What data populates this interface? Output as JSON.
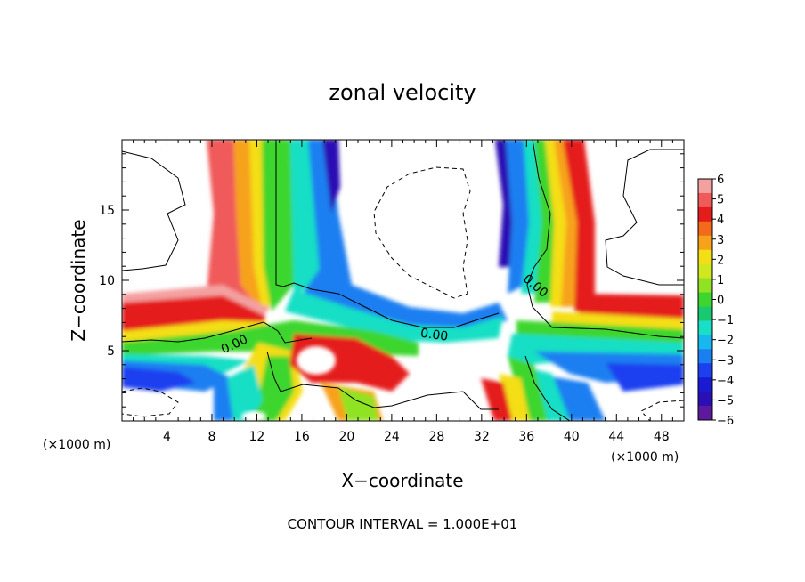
{
  "chart_data": {
    "type": "heatmap",
    "title": "zonal velocity",
    "xlabel": "X−coordinate",
    "ylabel": "Z−coordinate",
    "x_unit_left": "(×1000 m)",
    "x_unit_right": "(×1000 m)",
    "footer": "CONTOUR INTERVAL = 1.000E+01",
    "contour_label": "0.00",
    "xlim": [
      0,
      50
    ],
    "ylim": [
      0,
      20
    ],
    "x_ticks": [
      4,
      8,
      12,
      16,
      20,
      24,
      28,
      32,
      36,
      40,
      44,
      48
    ],
    "y_ticks": [
      5,
      10,
      15
    ],
    "colorbar": {
      "ticks": [
        "6",
        "5",
        "4",
        "3",
        "2",
        "1",
        "0",
        "−1",
        "−2",
        "−3",
        "−4",
        "−5",
        "−6"
      ],
      "range": [
        -6,
        6
      ],
      "colors": [
        "#f4a0a0",
        "#f05a5a",
        "#e51c1c",
        "#f26a1a",
        "#f7a21b",
        "#f4de16",
        "#cfe81f",
        "#8fe324",
        "#3ed62e",
        "#18c96f",
        "#18dfc5",
        "#18b8ef",
        "#1a7ff1",
        "#1c3ff0",
        "#1a1ad3",
        "#2a10b4",
        "#5e1a9c"
      ]
    }
  }
}
